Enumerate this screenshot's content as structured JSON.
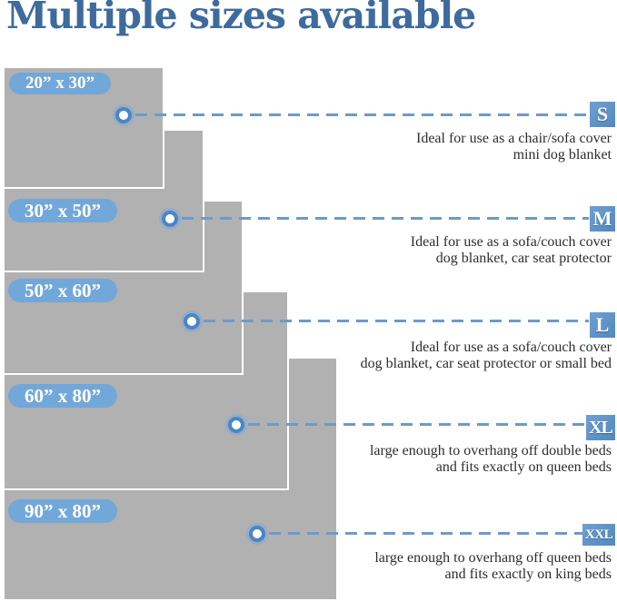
{
  "title": "Multiple sizes available",
  "colors": {
    "title_blue": "#3e6b9d",
    "pill_blue": "#72a7d9",
    "badge_blue": "#5c90c5",
    "dash_blue": "#6d9aca",
    "blanket_gray": "#b1b1b1",
    "description_text": "#2d2d2d"
  },
  "sizes": [
    {
      "code": "S",
      "dimensions": "20” x 30”",
      "desc1": "Ideal for use as a chair/sofa cover",
      "desc2": "mini dog blanket"
    },
    {
      "code": "M",
      "dimensions": "30” x 50”",
      "desc1": "Ideal for use as a sofa/couch cover",
      "desc2": "dog blanket, car seat protector"
    },
    {
      "code": "L",
      "dimensions": "50” x 60”",
      "desc1": "Ideal for use as a sofa/couch cover",
      "desc2": "dog blanket, car seat protector or small bed"
    },
    {
      "code": "XL",
      "dimensions": "60” x 80”",
      "desc1": "large enough to overhang off double beds",
      "desc2": "and fits exactly on queen beds"
    },
    {
      "code": "XXL",
      "dimensions": "90” x 80”",
      "desc1": "large enough to overhang off queen beds",
      "desc2": "and fits exactly on king beds"
    }
  ]
}
